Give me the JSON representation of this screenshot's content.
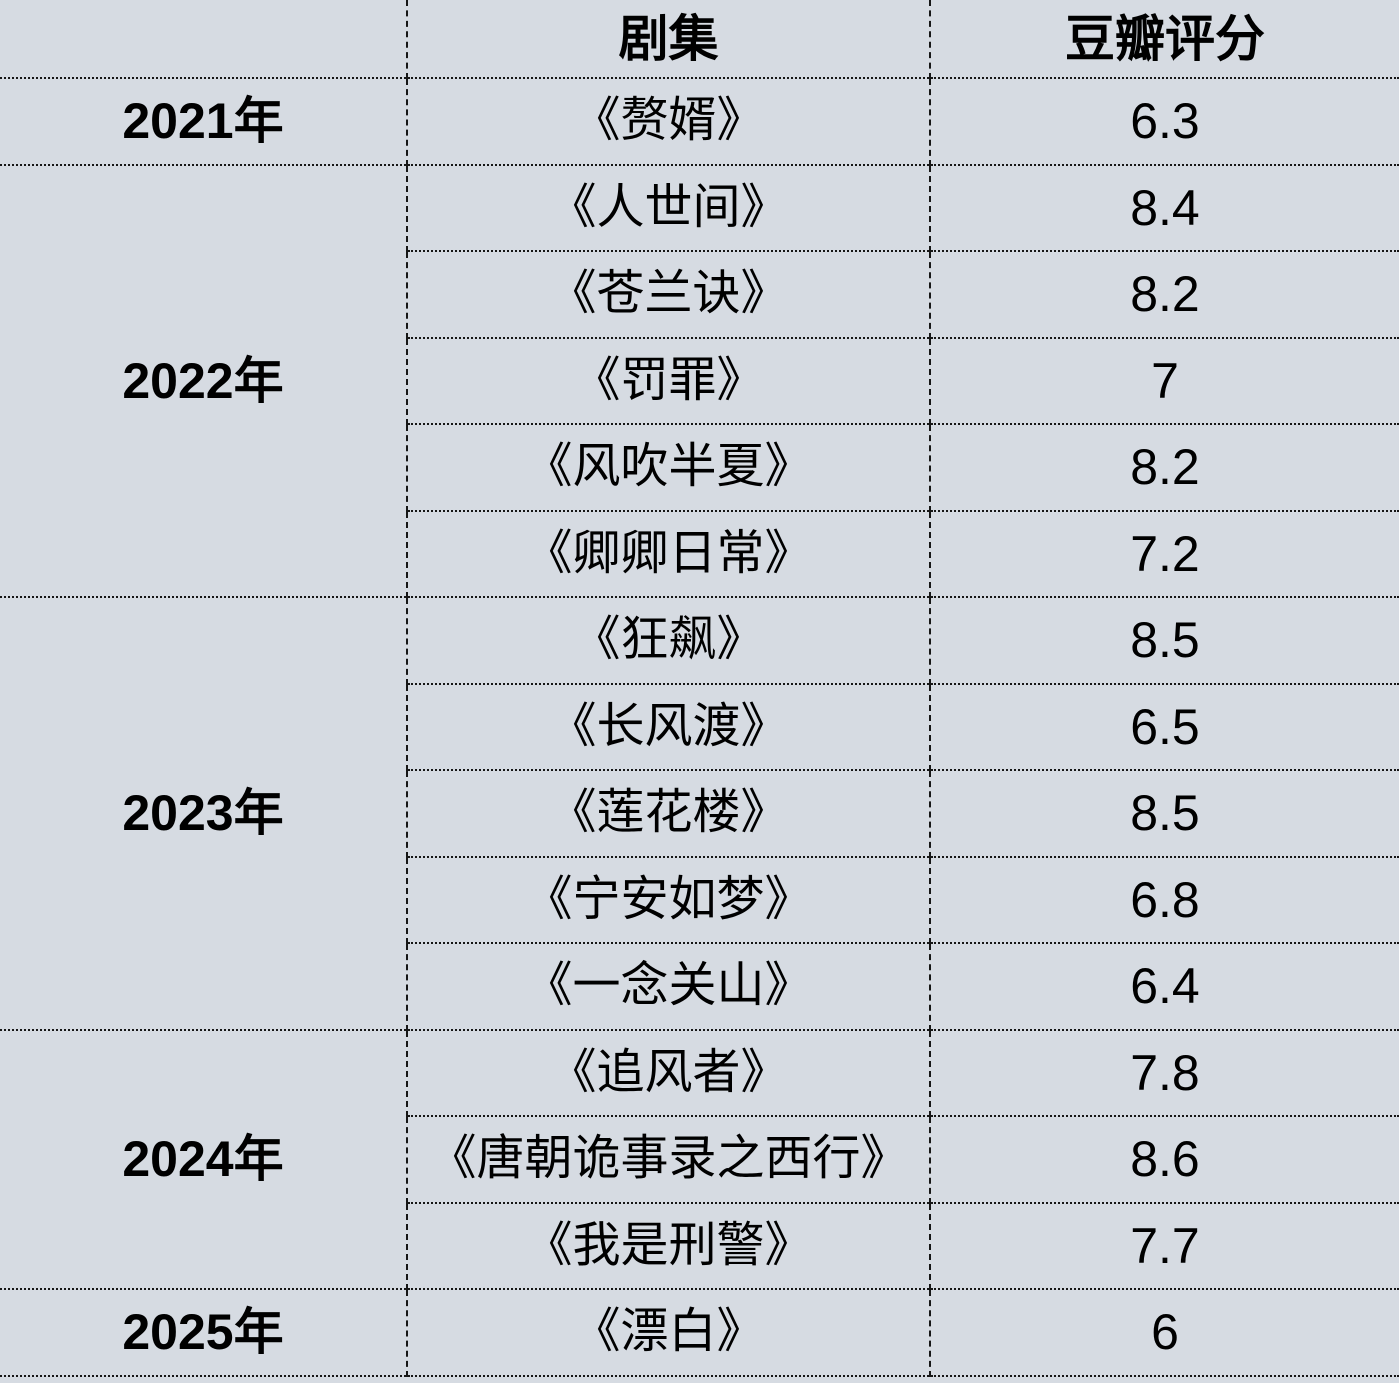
{
  "colors": {
    "background": "#d6dbe2",
    "border": "#161616",
    "text": "#000000"
  },
  "table": {
    "header": {
      "year": "",
      "series": "剧集",
      "rating": "豆瓣评分"
    },
    "groups": [
      {
        "year": "2021年",
        "items": [
          {
            "title": "《赘婿》",
            "rating": "6.3"
          }
        ]
      },
      {
        "year": "2022年",
        "items": [
          {
            "title": "《人世间》",
            "rating": "8.4"
          },
          {
            "title": "《苍兰诀》",
            "rating": "8.2"
          },
          {
            "title": "《罚罪》",
            "rating": "7"
          },
          {
            "title": "《风吹半夏》",
            "rating": "8.2"
          },
          {
            "title": "《卿卿日常》",
            "rating": "7.2"
          }
        ]
      },
      {
        "year": "2023年",
        "items": [
          {
            "title": "《狂飙》",
            "rating": "8.5"
          },
          {
            "title": "《长风渡》",
            "rating": "6.5"
          },
          {
            "title": "《莲花楼》",
            "rating": "8.5"
          },
          {
            "title": "《宁安如梦》",
            "rating": "6.8"
          },
          {
            "title": "《一念关山》",
            "rating": "6.4"
          }
        ]
      },
      {
        "year": "2024年",
        "items": [
          {
            "title": "《追风者》",
            "rating": "7.8"
          },
          {
            "title": "《唐朝诡事录之西行》",
            "rating": "8.6"
          },
          {
            "title": "《我是刑警》",
            "rating": "7.7"
          }
        ]
      },
      {
        "year": "2025年",
        "items": [
          {
            "title": "《漂白》",
            "rating": "6"
          }
        ]
      }
    ]
  },
  "chart_data": {
    "type": "table",
    "columns": [
      "",
      "剧集",
      "豆瓣评分"
    ],
    "rows": [
      [
        "2021年",
        "《赘婿》",
        6.3
      ],
      [
        "2022年",
        "《人世间》",
        8.4
      ],
      [
        "2022年",
        "《苍兰诀》",
        8.2
      ],
      [
        "2022年",
        "《罚罪》",
        7
      ],
      [
        "2022年",
        "《风吹半夏》",
        8.2
      ],
      [
        "2022年",
        "《卿卿日常》",
        7.2
      ],
      [
        "2023年",
        "《狂飙》",
        8.5
      ],
      [
        "2023年",
        "《长风渡》",
        6.5
      ],
      [
        "2023年",
        "《莲花楼》",
        8.5
      ],
      [
        "2023年",
        "《宁安如梦》",
        6.8
      ],
      [
        "2023年",
        "《一念关山》",
        6.4
      ],
      [
        "2024年",
        "《追风者》",
        7.8
      ],
      [
        "2024年",
        "《唐朝诡事录之西行》",
        8.6
      ],
      [
        "2024年",
        "《我是刑警》",
        7.7
      ],
      [
        "2025年",
        "《漂白》",
        6
      ]
    ]
  }
}
